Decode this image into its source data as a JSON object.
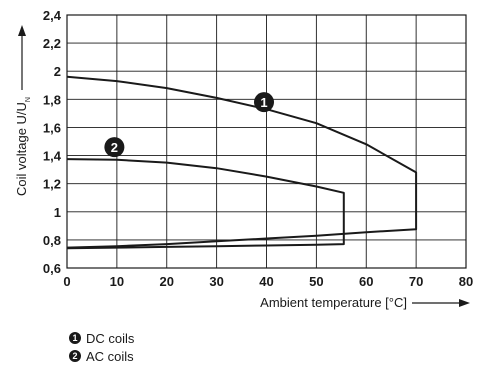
{
  "chart_data": {
    "type": "line",
    "xlabel": "Ambient temperature [°C]",
    "ylabel_main": "Coil voltage U/U",
    "ylabel_sub": "N",
    "xlim": [
      0,
      80
    ],
    "ylim": [
      0.6,
      2.4
    ],
    "x_ticks": [
      "0",
      "10",
      "20",
      "30",
      "40",
      "50",
      "60",
      "70",
      "80"
    ],
    "y_ticks": [
      "0,6",
      "0,8",
      "1",
      "1,2",
      "1,4",
      "1,6",
      "1,8",
      "2",
      "2,2",
      "2,4"
    ],
    "grid": true,
    "series": [
      {
        "name": "DC coils",
        "marker": "1",
        "marker_at": {
          "x": 39.5,
          "y": 1.78
        },
        "points": [
          [
            0,
            1.96
          ],
          [
            10,
            1.93
          ],
          [
            20,
            1.88
          ],
          [
            30,
            1.81
          ],
          [
            40,
            1.73
          ],
          [
            50,
            1.63
          ],
          [
            60,
            1.48
          ],
          [
            70,
            1.28
          ],
          [
            70,
            0.875
          ],
          [
            60,
            0.855
          ],
          [
            50,
            0.83
          ],
          [
            40,
            0.81
          ],
          [
            30,
            0.79
          ],
          [
            20,
            0.77
          ],
          [
            10,
            0.755
          ],
          [
            0,
            0.745
          ]
        ]
      },
      {
        "name": "AC coils",
        "marker": "2",
        "marker_at": {
          "x": 9.5,
          "y": 1.46
        },
        "points": [
          [
            0,
            1.375
          ],
          [
            10,
            1.37
          ],
          [
            20,
            1.35
          ],
          [
            30,
            1.31
          ],
          [
            40,
            1.25
          ],
          [
            50,
            1.18
          ],
          [
            55.5,
            1.135
          ],
          [
            55.5,
            0.77
          ],
          [
            50,
            0.765
          ],
          [
            40,
            0.76
          ],
          [
            30,
            0.755
          ],
          [
            20,
            0.75
          ],
          [
            10,
            0.745
          ],
          [
            0,
            0.74
          ]
        ]
      }
    ]
  },
  "legend": [
    {
      "number": "1",
      "label": "DC coils"
    },
    {
      "number": "2",
      "label": "AC coils"
    }
  ]
}
